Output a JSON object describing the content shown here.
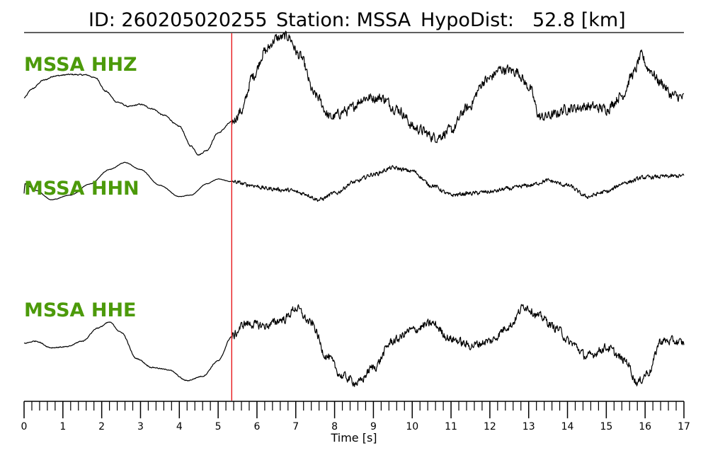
{
  "title": {
    "id_label": "ID: 260205020255",
    "station_label": "Station: MSSA",
    "hypodist_label": "HypoDist:",
    "hypodist_value": "52.8 [km]"
  },
  "colors": {
    "channel_label": "#4c9a0a",
    "trace": "#000000",
    "pick_line": "#e8181c"
  },
  "chart_data": {
    "type": "line",
    "xlabel": "Time [s]",
    "xlim": [
      0,
      17
    ],
    "x_major_ticks": [
      0,
      1,
      2,
      3,
      4,
      5,
      6,
      7,
      8,
      9,
      10,
      11,
      12,
      13,
      14,
      15,
      16,
      17
    ],
    "x_minor_step": 0.2,
    "pick_time": 5.35,
    "grid": false,
    "legend": "none",
    "series": [
      {
        "name": "MSSA HHZ",
        "noise": 0.18,
        "points": [
          [
            0,
            -0.05
          ],
          [
            0.2,
            0.15
          ],
          [
            0.5,
            0.35
          ],
          [
            0.8,
            0.45
          ],
          [
            1.2,
            0.48
          ],
          [
            1.6,
            0.47
          ],
          [
            1.85,
            0.4
          ],
          [
            2.1,
            0.1
          ],
          [
            2.4,
            -0.15
          ],
          [
            2.7,
            -0.25
          ],
          [
            3.0,
            -0.2
          ],
          [
            3.3,
            -0.3
          ],
          [
            3.6,
            -0.45
          ],
          [
            4.0,
            -0.7
          ],
          [
            4.3,
            -1.15
          ],
          [
            4.5,
            -1.35
          ],
          [
            4.7,
            -1.25
          ],
          [
            5.0,
            -0.85
          ],
          [
            5.35,
            -0.6
          ],
          [
            5.6,
            -0.35
          ],
          [
            5.9,
            0.45
          ],
          [
            6.2,
            1.0
          ],
          [
            6.5,
            1.3
          ],
          [
            6.8,
            1.35
          ],
          [
            7.1,
            0.9
          ],
          [
            7.5,
            0.0
          ],
          [
            7.9,
            -0.5
          ],
          [
            8.3,
            -0.35
          ],
          [
            8.8,
            -0.05
          ],
          [
            9.2,
            -0.05
          ],
          [
            9.6,
            -0.3
          ],
          [
            10.1,
            -0.75
          ],
          [
            10.6,
            -0.95
          ],
          [
            11.0,
            -0.8
          ],
          [
            11.4,
            -0.3
          ],
          [
            11.9,
            0.35
          ],
          [
            12.3,
            0.6
          ],
          [
            12.7,
            0.55
          ],
          [
            13.0,
            0.2
          ],
          [
            13.3,
            -0.5
          ],
          [
            13.6,
            -0.45
          ],
          [
            14.0,
            -0.3
          ],
          [
            14.5,
            -0.25
          ],
          [
            15.0,
            -0.3
          ],
          [
            15.4,
            0.0
          ],
          [
            15.7,
            0.5
          ],
          [
            15.9,
            0.9
          ],
          [
            16.1,
            0.6
          ],
          [
            16.4,
            0.3
          ],
          [
            16.7,
            0.0
          ],
          [
            17.0,
            -0.05
          ]
        ]
      },
      {
        "name": "MSSA HHN",
        "noise": 0.1,
        "points": [
          [
            0,
            -0.25
          ],
          [
            0.02,
            0.05
          ],
          [
            0.3,
            -0.15
          ],
          [
            0.7,
            -0.45
          ],
          [
            1.2,
            -0.3
          ],
          [
            1.7,
            0.05
          ],
          [
            2.2,
            0.5
          ],
          [
            2.6,
            0.72
          ],
          [
            3.0,
            0.5
          ],
          [
            3.5,
            0.0
          ],
          [
            4.0,
            -0.35
          ],
          [
            4.3,
            -0.3
          ],
          [
            4.7,
            0.05
          ],
          [
            5.0,
            0.2
          ],
          [
            5.35,
            0.12
          ],
          [
            5.8,
            0.02
          ],
          [
            6.3,
            -0.1
          ],
          [
            6.8,
            -0.15
          ],
          [
            7.2,
            -0.25
          ],
          [
            7.6,
            -0.45
          ],
          [
            8.0,
            -0.25
          ],
          [
            8.5,
            0.1
          ],
          [
            9.0,
            0.35
          ],
          [
            9.5,
            0.55
          ],
          [
            10.0,
            0.45
          ],
          [
            10.5,
            0.0
          ],
          [
            11.0,
            -0.3
          ],
          [
            11.5,
            -0.25
          ],
          [
            12.0,
            -0.2
          ],
          [
            12.5,
            -0.1
          ],
          [
            13.0,
            0.0
          ],
          [
            13.5,
            0.15
          ],
          [
            14.0,
            0.0
          ],
          [
            14.5,
            -0.35
          ],
          [
            15.0,
            -0.2
          ],
          [
            15.5,
            0.1
          ],
          [
            16.0,
            0.25
          ],
          [
            16.5,
            0.28
          ],
          [
            17.0,
            0.3
          ]
        ]
      },
      {
        "name": "MSSA HHE",
        "noise": 0.15,
        "points": [
          [
            0,
            0.0
          ],
          [
            0.3,
            0.05
          ],
          [
            0.7,
            -0.1
          ],
          [
            1.1,
            -0.08
          ],
          [
            1.5,
            0.05
          ],
          [
            1.9,
            0.35
          ],
          [
            2.2,
            0.48
          ],
          [
            2.5,
            0.25
          ],
          [
            2.9,
            -0.35
          ],
          [
            3.3,
            -0.55
          ],
          [
            3.7,
            -0.6
          ],
          [
            4.2,
            -0.85
          ],
          [
            4.6,
            -0.75
          ],
          [
            5.0,
            -0.4
          ],
          [
            5.35,
            0.15
          ],
          [
            5.7,
            0.45
          ],
          [
            6.2,
            0.4
          ],
          [
            6.7,
            0.55
          ],
          [
            7.0,
            0.8
          ],
          [
            7.4,
            0.45
          ],
          [
            7.8,
            -0.3
          ],
          [
            8.2,
            -0.75
          ],
          [
            8.6,
            -0.9
          ],
          [
            9.0,
            -0.55
          ],
          [
            9.5,
            0.05
          ],
          [
            10.0,
            0.3
          ],
          [
            10.5,
            0.45
          ],
          [
            11.0,
            0.1
          ],
          [
            11.5,
            -0.05
          ],
          [
            12.0,
            0.05
          ],
          [
            12.5,
            0.4
          ],
          [
            12.9,
            0.85
          ],
          [
            13.3,
            0.6
          ],
          [
            13.7,
            0.35
          ],
          [
            14.1,
            0.0
          ],
          [
            14.5,
            -0.3
          ],
          [
            15.0,
            -0.1
          ],
          [
            15.5,
            -0.4
          ],
          [
            15.8,
            -0.9
          ],
          [
            16.1,
            -0.65
          ],
          [
            16.4,
            0.05
          ],
          [
            16.7,
            0.05
          ],
          [
            17.0,
            0.0
          ]
        ]
      }
    ]
  }
}
